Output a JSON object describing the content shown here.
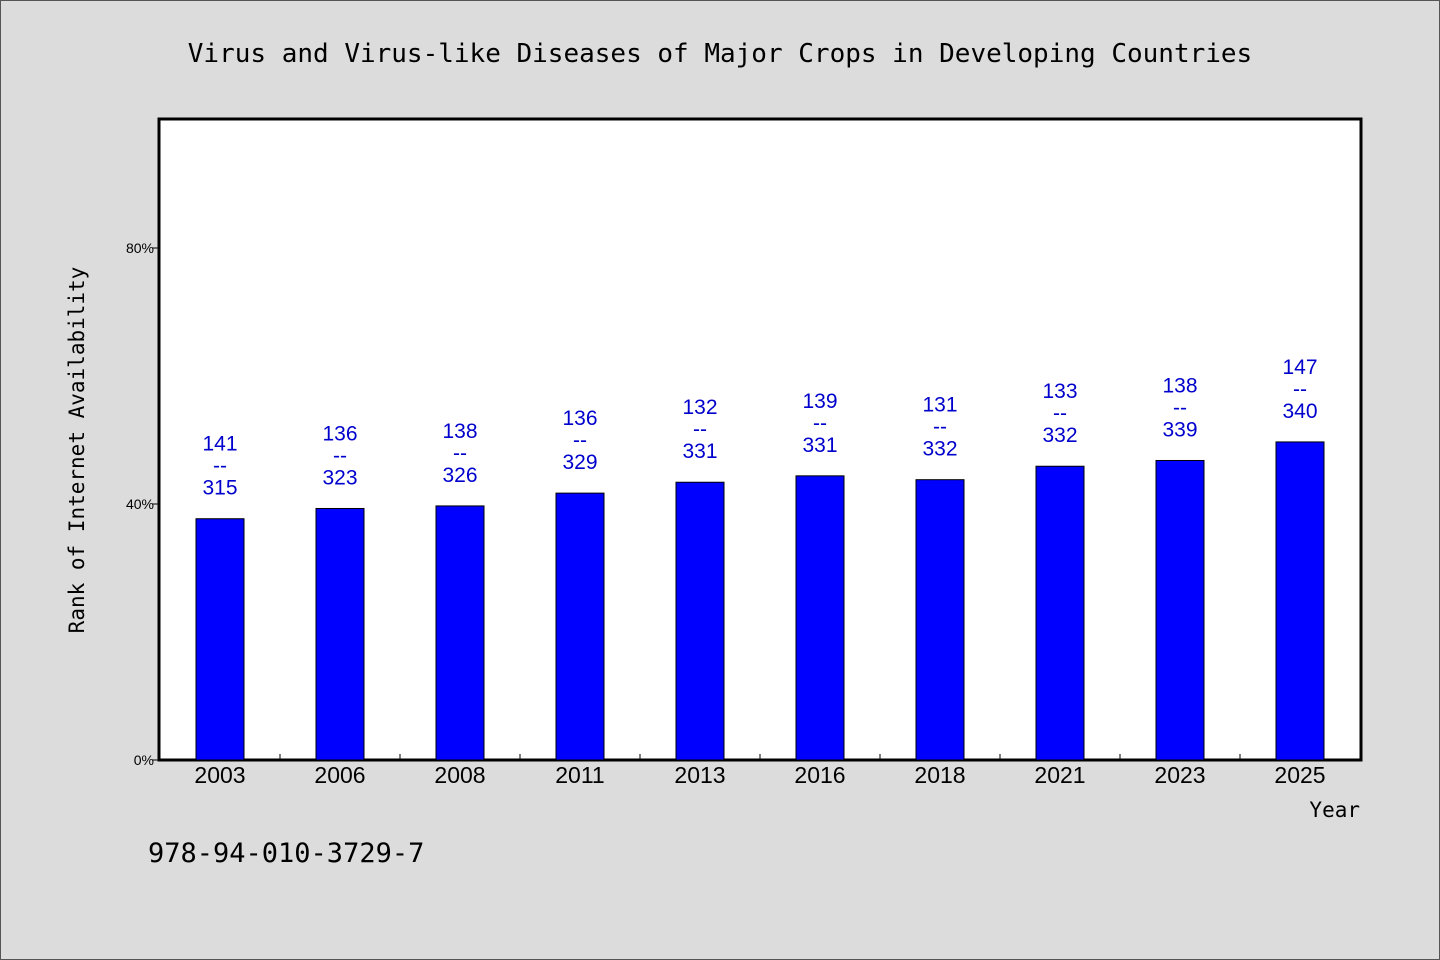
{
  "chart_data": {
    "type": "bar",
    "title": "Virus and Virus-like Diseases of Major Crops in Developing Countries",
    "xlabel": "Year",
    "ylabel": "Rank of Internet Availability",
    "categories": [
      "2003",
      "2006",
      "2008",
      "2011",
      "2013",
      "2016",
      "2018",
      "2021",
      "2023",
      "2025"
    ],
    "values": [
      37.7,
      39.3,
      39.7,
      41.7,
      43.4,
      44.4,
      43.8,
      45.9,
      46.8,
      49.7
    ],
    "ylim": [
      0,
      100
    ],
    "yticks": [
      0,
      40,
      80
    ],
    "ytick_labels": [
      "0%",
      "40%",
      "80%"
    ],
    "data_labels": [
      [
        "141",
        "--",
        "315"
      ],
      [
        "136",
        "--",
        "323"
      ],
      [
        "138",
        "--",
        "326"
      ],
      [
        "136",
        "--",
        "329"
      ],
      [
        "132",
        "--",
        "331"
      ],
      [
        "139",
        "--",
        "331"
      ],
      [
        "131",
        "--",
        "332"
      ],
      [
        "133",
        "--",
        "332"
      ],
      [
        "138",
        "--",
        "339"
      ],
      [
        "147",
        "--",
        "340"
      ]
    ],
    "bar_color": "#0000ff",
    "label_color": "#0000cc",
    "plot_background": "#ffffff",
    "page_background": "#dcdcdc",
    "grid": false,
    "legend": "none"
  },
  "footer_text": "978-94-010-3729-7"
}
